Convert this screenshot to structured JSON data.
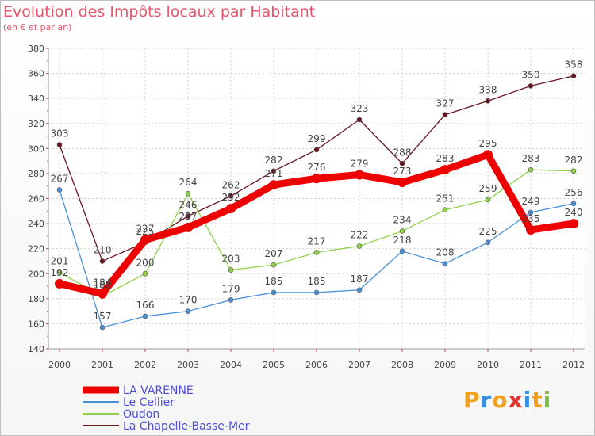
{
  "title": "Evolution des Impôts locaux par Habitant",
  "subtitle": "(en € et par an)",
  "logo": "Proxiti",
  "chart_data": {
    "type": "line",
    "title": "Evolution des Impôts locaux par Habitant",
    "ylabel": "en € et par an",
    "ylim": [
      140,
      380
    ],
    "yticks": [
      140,
      160,
      180,
      200,
      220,
      240,
      260,
      280,
      300,
      320,
      340,
      360,
      380
    ],
    "categories": [
      "2000",
      "2001",
      "2002",
      "2003",
      "2004",
      "2005",
      "2006",
      "2007",
      "2008",
      "2009",
      "2010",
      "2011",
      "2012"
    ],
    "series": [
      {
        "name": "La Chapelle-Basse-Mer",
        "color": "#6b1520",
        "values": [
          303,
          210,
          225,
          246,
          262,
          282,
          299,
          323,
          288,
          327,
          338,
          350,
          358
        ]
      },
      {
        "name": "Oudon",
        "color": "#8fd14a",
        "values": [
          201,
          182,
          200,
          264,
          203,
          207,
          217,
          222,
          234,
          251,
          259,
          283,
          282
        ]
      },
      {
        "name": "Le Cellier",
        "color": "#4a90d9",
        "values": [
          267,
          157,
          166,
          170,
          179,
          185,
          185,
          187,
          218,
          208,
          225,
          249,
          256
        ]
      },
      {
        "name": "LA VARENNE",
        "color": "#ee0000",
        "values": [
          192,
          184,
          227,
          237,
          252,
          271,
          276,
          279,
          273,
          283,
          295,
          235,
          240
        ]
      }
    ],
    "legend": [
      "LA VARENNE",
      "Le Cellier",
      "Oudon",
      "La Chapelle-Basse-Mer"
    ]
  }
}
